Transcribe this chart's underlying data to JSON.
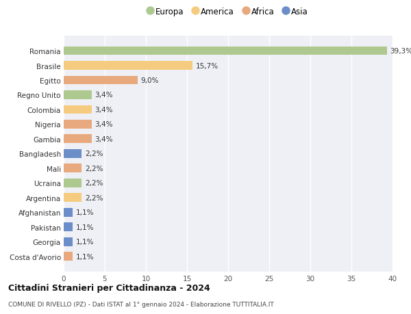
{
  "categories": [
    "Romania",
    "Brasile",
    "Egitto",
    "Regno Unito",
    "Colombia",
    "Nigeria",
    "Gambia",
    "Bangladesh",
    "Mali",
    "Ucraina",
    "Argentina",
    "Afghanistan",
    "Pakistan",
    "Georgia",
    "Costa d'Avorio"
  ],
  "values": [
    39.3,
    15.7,
    9.0,
    3.4,
    3.4,
    3.4,
    3.4,
    2.2,
    2.2,
    2.2,
    2.2,
    1.1,
    1.1,
    1.1,
    1.1
  ],
  "labels": [
    "39,3%",
    "15,7%",
    "9,0%",
    "3,4%",
    "3,4%",
    "3,4%",
    "3,4%",
    "2,2%",
    "2,2%",
    "2,2%",
    "2,2%",
    "1,1%",
    "1,1%",
    "1,1%",
    "1,1%"
  ],
  "continents": [
    "Europa",
    "America",
    "Africa",
    "Europa",
    "America",
    "Africa",
    "Africa",
    "Asia",
    "Africa",
    "Europa",
    "America",
    "Asia",
    "Asia",
    "Asia",
    "Africa"
  ],
  "colors": {
    "Europa": "#aec98f",
    "America": "#f5cc7f",
    "Africa": "#e8a97e",
    "Asia": "#6b8ec9"
  },
  "title": "Cittadini Stranieri per Cittadinanza - 2024",
  "subtitle": "COMUNE DI RIVELLO (PZ) - Dati ISTAT al 1° gennaio 2024 - Elaborazione TUTTITALIA.IT",
  "xlim": [
    0,
    40
  ],
  "xticks": [
    0,
    5,
    10,
    15,
    20,
    25,
    30,
    35,
    40
  ],
  "plot_bg_color": "#eef0f5",
  "fig_bg_color": "#ffffff",
  "grid_color": "#ffffff"
}
